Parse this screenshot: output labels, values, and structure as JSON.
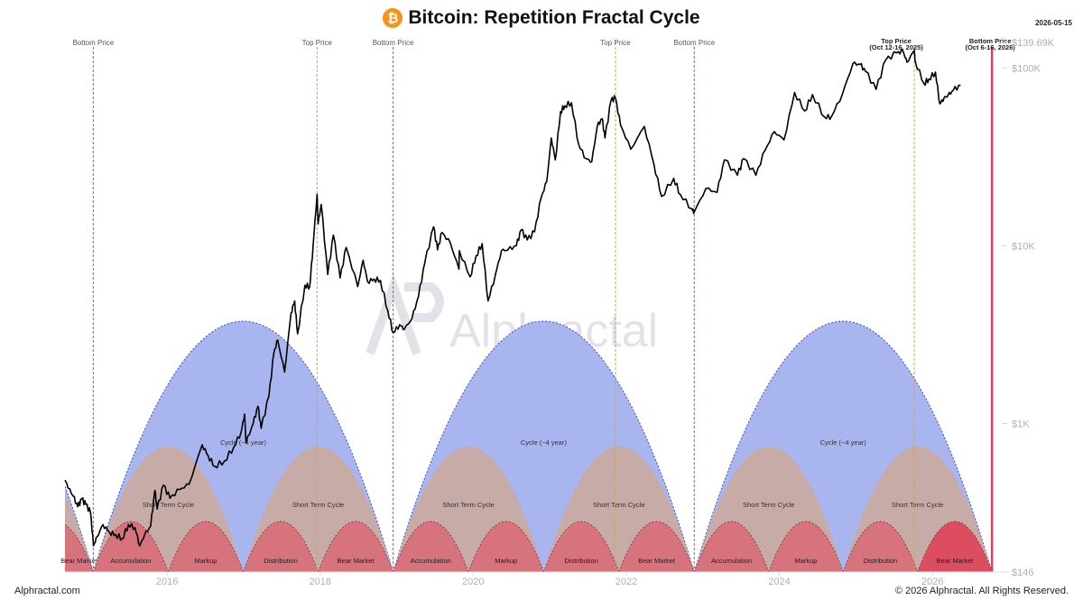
{
  "header": {
    "title": "Bitcoin: Repetition Fractal Cycle",
    "icon": "bitcoin-icon",
    "icon_glyph": "₿",
    "date": "2026-05-15"
  },
  "footer": {
    "left": "Alphractal.com",
    "right": "© 2026 Alphractal. All Rights Reserved."
  },
  "watermark": {
    "text": "Alphractal",
    "logo_glyph": "A"
  },
  "chart_data": {
    "type": "line",
    "title": "Bitcoin: Repetition Fractal Cycle",
    "xlabel": "",
    "ylabel": "",
    "y_scale": "log",
    "ylim": [
      146,
      139690
    ],
    "xlim": [
      "2014-09-01",
      "2027-01-01"
    ],
    "x_ticks": [
      "2016",
      "2018",
      "2020",
      "2022",
      "2024",
      "2026"
    ],
    "y_ticks": [
      {
        "value": 146,
        "label": "$146"
      },
      {
        "value": 1000,
        "label": "$1K"
      },
      {
        "value": 10000,
        "label": "$10K"
      },
      {
        "value": 100000,
        "label": "$100K"
      },
      {
        "value": 139690,
        "label": "$139.69K"
      }
    ],
    "grid": false,
    "series": [
      {
        "color": "#000000",
        "points": [
          [
            "2014-09-01",
            480
          ],
          [
            "2014-09-20",
            430
          ],
          [
            "2014-10-10",
            390
          ],
          [
            "2014-11-01",
            340
          ],
          [
            "2014-11-20",
            375
          ],
          [
            "2014-12-10",
            350
          ],
          [
            "2015-01-01",
            315
          ],
          [
            "2015-01-15",
            205
          ],
          [
            "2015-02-01",
            230
          ],
          [
            "2015-03-01",
            270
          ],
          [
            "2015-04-01",
            245
          ],
          [
            "2015-05-01",
            237
          ],
          [
            "2015-06-01",
            225
          ],
          [
            "2015-07-01",
            270
          ],
          [
            "2015-08-01",
            260
          ],
          [
            "2015-08-24",
            205
          ],
          [
            "2015-09-15",
            235
          ],
          [
            "2015-10-15",
            265
          ],
          [
            "2015-11-04",
            420
          ],
          [
            "2015-11-15",
            330
          ],
          [
            "2015-12-15",
            450
          ],
          [
            "2016-01-15",
            380
          ],
          [
            "2016-03-01",
            425
          ],
          [
            "2016-04-15",
            455
          ],
          [
            "2016-06-17",
            760
          ],
          [
            "2016-07-15",
            660
          ],
          [
            "2016-08-15",
            575
          ],
          [
            "2016-10-01",
            615
          ],
          [
            "2016-11-15",
            740
          ],
          [
            "2016-12-20",
            900
          ],
          [
            "2017-01-05",
            1130
          ],
          [
            "2017-01-12",
            780
          ],
          [
            "2017-02-15",
            1000
          ],
          [
            "2017-03-10",
            1250
          ],
          [
            "2017-03-25",
            940
          ],
          [
            "2017-05-01",
            1420
          ],
          [
            "2017-05-25",
            2500
          ],
          [
            "2017-06-12",
            2950
          ],
          [
            "2017-07-15",
            1950
          ],
          [
            "2017-08-15",
            4200
          ],
          [
            "2017-09-01",
            4900
          ],
          [
            "2017-09-15",
            3200
          ],
          [
            "2017-10-20",
            6000
          ],
          [
            "2017-11-12",
            5900
          ],
          [
            "2017-11-28",
            10000
          ],
          [
            "2017-12-17",
            19500
          ],
          [
            "2017-12-22",
            13300
          ],
          [
            "2018-01-06",
            17100
          ],
          [
            "2018-02-06",
            6900
          ],
          [
            "2018-03-05",
            11500
          ],
          [
            "2018-04-06",
            6600
          ],
          [
            "2018-05-05",
            9800
          ],
          [
            "2018-06-29",
            5900
          ],
          [
            "2018-07-25",
            8300
          ],
          [
            "2018-08-15",
            6300
          ],
          [
            "2018-09-15",
            6500
          ],
          [
            "2018-10-15",
            6400
          ],
          [
            "2018-11-20",
            4300
          ],
          [
            "2018-12-15",
            3250
          ],
          [
            "2019-01-15",
            3600
          ],
          [
            "2019-02-07",
            3400
          ],
          [
            "2019-03-15",
            3900
          ],
          [
            "2019-04-15",
            5200
          ],
          [
            "2019-05-15",
            8000
          ],
          [
            "2019-06-26",
            12800
          ],
          [
            "2019-07-15",
            9500
          ],
          [
            "2019-08-05",
            11900
          ],
          [
            "2019-09-15",
            10300
          ],
          [
            "2019-10-25",
            7400
          ],
          [
            "2019-10-27",
            9400
          ],
          [
            "2019-12-17",
            6700
          ],
          [
            "2020-01-15",
            8800
          ],
          [
            "2020-02-13",
            10300
          ],
          [
            "2020-03-12",
            4900
          ],
          [
            "2020-04-15",
            6800
          ],
          [
            "2020-05-15",
            9400
          ],
          [
            "2020-06-15",
            9500
          ],
          [
            "2020-07-25",
            10000
          ],
          [
            "2020-08-17",
            12300
          ],
          [
            "2020-09-15",
            10800
          ],
          [
            "2020-10-20",
            12000
          ],
          [
            "2020-11-20",
            18600
          ],
          [
            "2020-12-17",
            23000
          ],
          [
            "2021-01-08",
            40500
          ],
          [
            "2021-01-27",
            30500
          ],
          [
            "2021-02-21",
            57000
          ],
          [
            "2021-03-13",
            61500
          ],
          [
            "2021-04-14",
            64000
          ],
          [
            "2021-05-19",
            37000
          ],
          [
            "2021-06-22",
            31000
          ],
          [
            "2021-07-20",
            29800
          ],
          [
            "2021-08-15",
            47000
          ],
          [
            "2021-09-07",
            52000
          ],
          [
            "2021-09-21",
            40500
          ],
          [
            "2021-10-20",
            66000
          ],
          [
            "2021-11-10",
            68000
          ],
          [
            "2021-12-04",
            48000
          ],
          [
            "2022-01-22",
            35000
          ],
          [
            "2022-03-28",
            47000
          ],
          [
            "2022-05-12",
            29000
          ],
          [
            "2022-06-18",
            19000
          ],
          [
            "2022-08-15",
            24000
          ],
          [
            "2022-09-15",
            19500
          ],
          [
            "2022-11-09",
            16200
          ],
          [
            "2022-11-21",
            15500
          ],
          [
            "2023-01-15",
            21000
          ],
          [
            "2023-03-10",
            20000
          ],
          [
            "2023-04-14",
            30500
          ],
          [
            "2023-06-15",
            25000
          ],
          [
            "2023-07-15",
            31000
          ],
          [
            "2023-09-11",
            25000
          ],
          [
            "2023-10-25",
            34500
          ],
          [
            "2023-12-08",
            44000
          ],
          [
            "2024-01-23",
            39500
          ],
          [
            "2024-03-14",
            73000
          ],
          [
            "2024-05-01",
            57500
          ],
          [
            "2024-06-07",
            71000
          ],
          [
            "2024-08-05",
            53000
          ],
          [
            "2024-09-06",
            53500
          ],
          [
            "2024-10-29",
            72000
          ],
          [
            "2024-12-17",
            106000
          ],
          [
            "2025-01-20",
            105000
          ],
          [
            "2025-02-15",
            96000
          ],
          [
            "2025-04-07",
            76000
          ],
          [
            "2025-05-22",
            111000
          ],
          [
            "2025-07-14",
            122000
          ],
          [
            "2025-08-14",
            124000
          ],
          [
            "2025-09-01",
            108000
          ],
          [
            "2025-10-06",
            126000
          ],
          [
            "2025-10-10",
            110000
          ],
          [
            "2025-11-21",
            82000
          ],
          [
            "2025-12-15",
            87000
          ],
          [
            "2026-01-15",
            95000
          ],
          [
            "2026-02-05",
            63000
          ],
          [
            "2026-02-25",
            68000
          ],
          [
            "2026-03-15",
            70000
          ],
          [
            "2026-04-10",
            75000
          ],
          [
            "2026-05-15",
            80000
          ]
        ]
      }
    ],
    "markers": [
      {
        "date": "2015-01-14",
        "type": "bottom",
        "label": "Bottom Price"
      },
      {
        "date": "2017-12-17",
        "type": "top",
        "label": "Top Price"
      },
      {
        "date": "2018-12-15",
        "type": "bottom",
        "label": "Bottom Price"
      },
      {
        "date": "2021-11-10",
        "type": "top",
        "label": "Top Price"
      },
      {
        "date": "2022-11-21",
        "type": "bottom",
        "label": "Bottom Price"
      },
      {
        "date": "2025-10-06",
        "type": "top",
        "label": "Top Price",
        "sublabel": "(Oct 12-16, 2025)"
      },
      {
        "date": "2026-10-12",
        "type": "bottom",
        "label": "Bottom Price",
        "sublabel": "(Oct 6-16, 2026)"
      }
    ],
    "cycles": [
      {
        "start": "2015-01-14",
        "end": "2018-12-15",
        "label": "Cycle (~4 year)"
      },
      {
        "start": "2018-12-15",
        "end": "2022-11-21",
        "label": "Cycle (~4 year)"
      },
      {
        "start": "2022-11-21",
        "end": "2026-10-12",
        "label": "Cycle (~4 year)"
      }
    ],
    "short_term_label": "Short Term Cycle",
    "phase_labels": [
      "Accumulation",
      "Markup",
      "Distribution",
      "Bear Market"
    ],
    "pre_phase_label": "Bear Market",
    "colors": {
      "line": "#000000",
      "bottom_marker": "#d6455a",
      "top_marker": "#d9a441",
      "cycle_fill": "#a8b5ef",
      "cycle_outline": "#3d4fb8",
      "short_fill": "#c6aba7",
      "phase_fill": "#d6737c",
      "phase_last_fill": "#dc4e5f",
      "phase_outline": "#8b2a3b",
      "axis_text": "#aab0b8"
    }
  }
}
